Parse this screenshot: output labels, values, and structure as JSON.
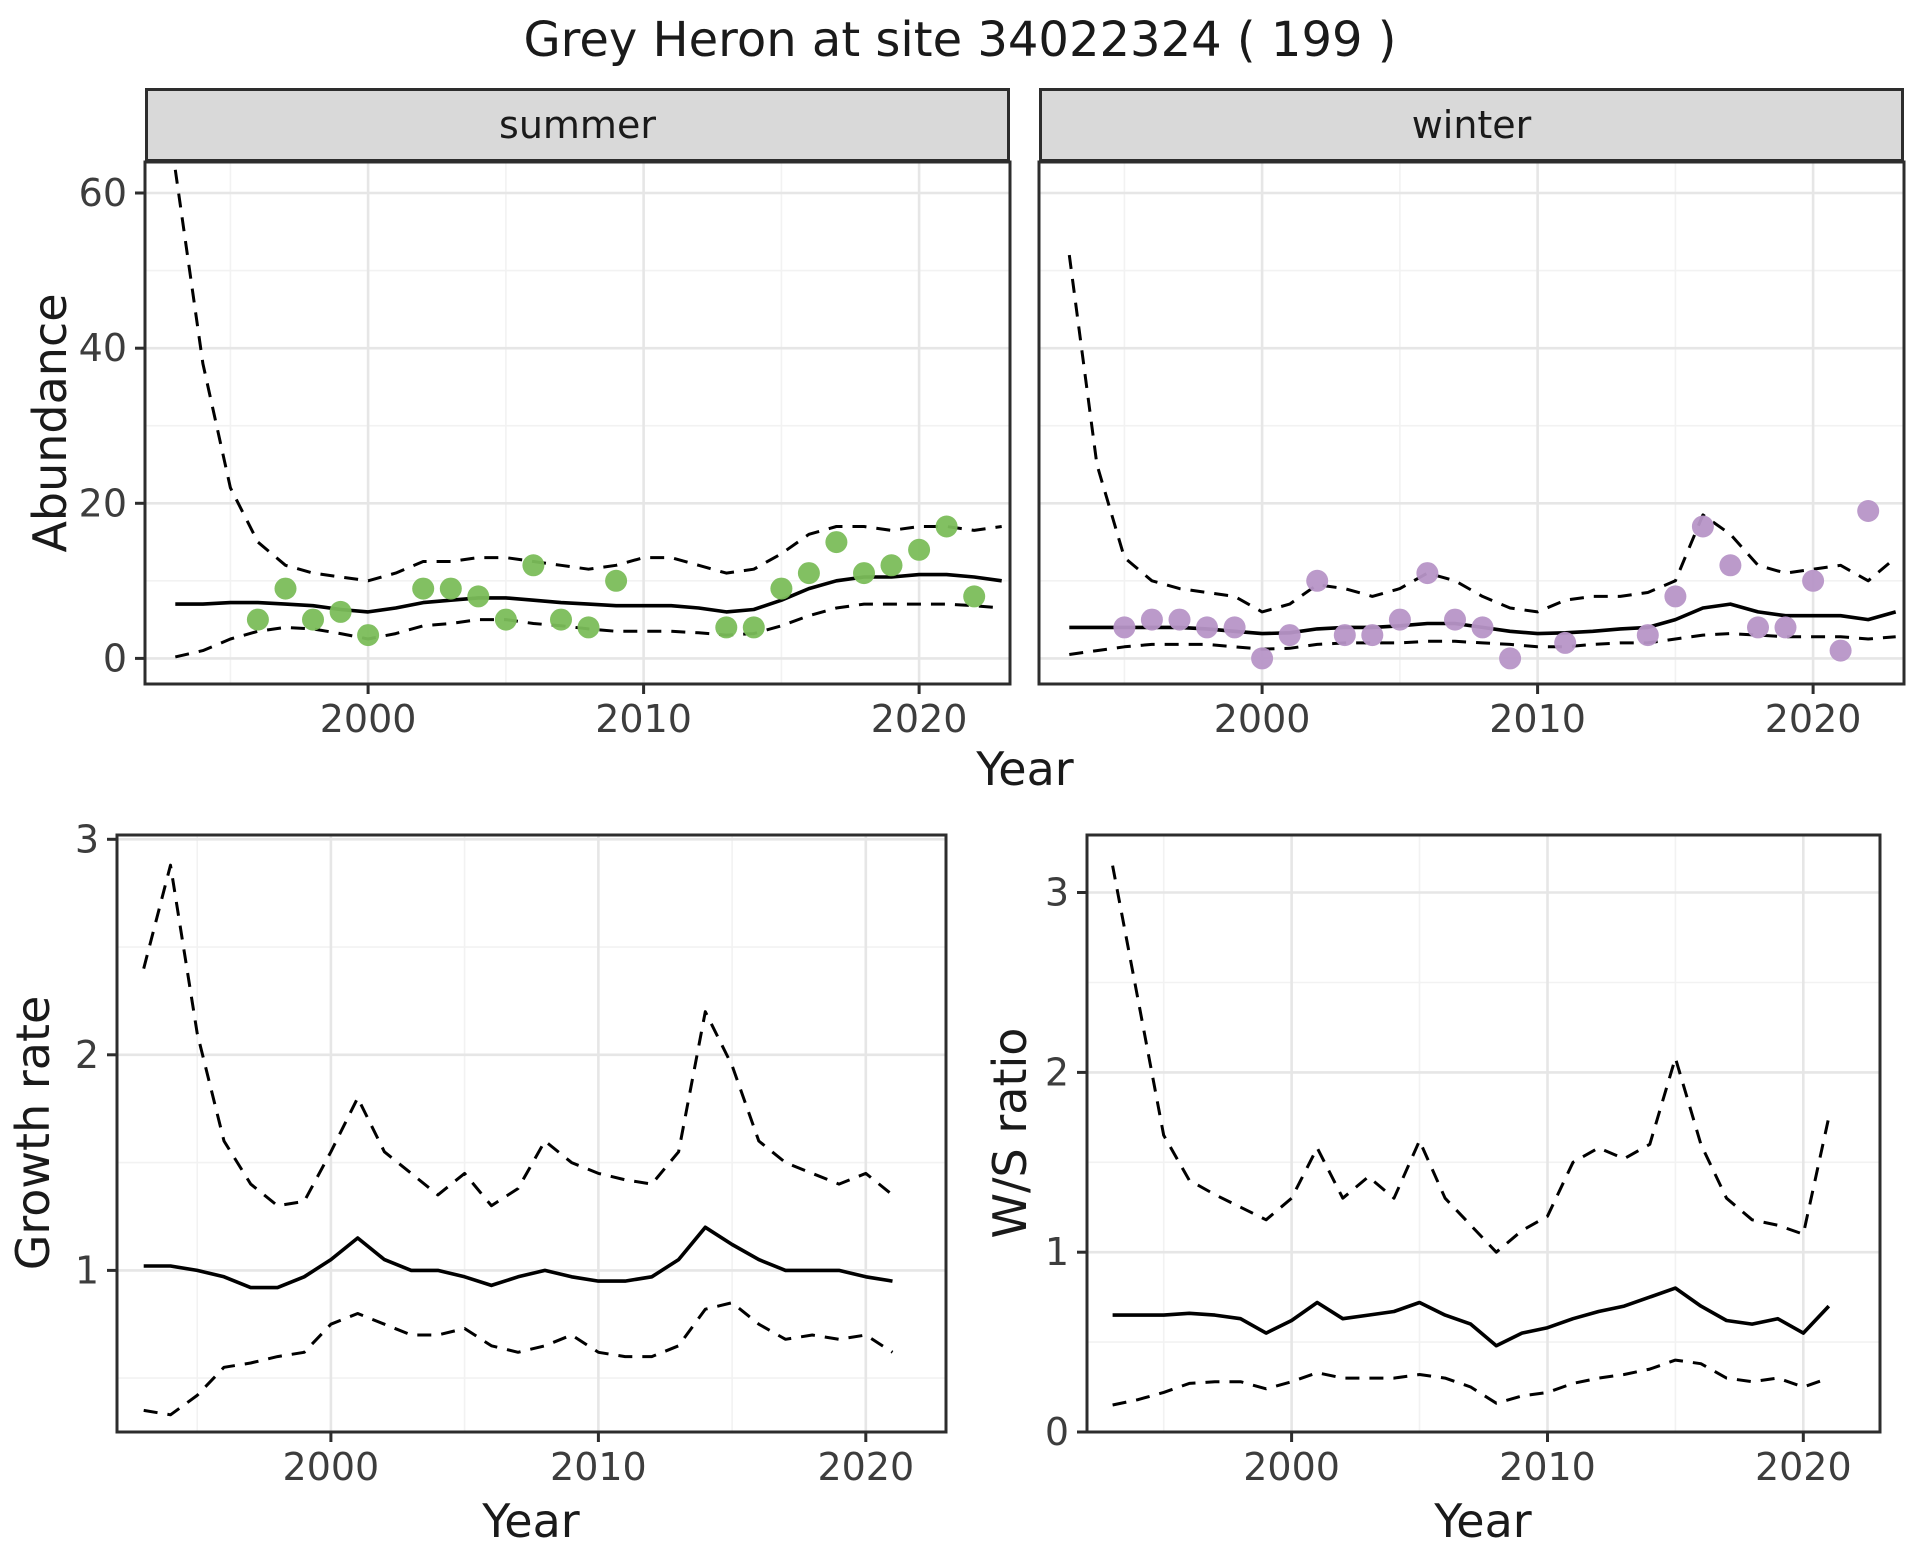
{
  "title": "Grey Heron at site 34022324 ( 199 )",
  "colors": {
    "summer_points": "#7bbd5a",
    "winter_points": "#b795c7",
    "line": "#000000",
    "grid_major": "#e6e6e6",
    "grid_minor": "#f2f2f2",
    "panel_border": "#2d2d2d",
    "strip_bg": "#d9d9d9",
    "tick_text": "#3d3d3d"
  },
  "chart_data": [
    {
      "id": "abundance_summer",
      "type": "line",
      "facet": "summer",
      "xlabel": "Year",
      "ylabel": "Abundance",
      "xlim": [
        1991.9,
        2023.3
      ],
      "ylim": [
        -3.3,
        64
      ],
      "xticks": [
        2000,
        2010,
        2020
      ],
      "xticks_minor": [
        1995,
        2005,
        2015
      ],
      "yticks": [
        0,
        20,
        40,
        60
      ],
      "yticks_minor": [
        10,
        30,
        50
      ],
      "x": [
        1993,
        1994,
        1995,
        1996,
        1997,
        1998,
        1999,
        2000,
        2001,
        2002,
        2003,
        2004,
        2005,
        2006,
        2007,
        2008,
        2009,
        2010,
        2011,
        2012,
        2013,
        2014,
        2015,
        2016,
        2017,
        2018,
        2019,
        2020,
        2021,
        2022,
        2023
      ],
      "series": [
        {
          "name": "upper-ci",
          "style": "dashed",
          "values": [
            63,
            38,
            22,
            15,
            12,
            11,
            10.5,
            10,
            11,
            12.5,
            12.5,
            13,
            13,
            12.5,
            12,
            11.5,
            12,
            13,
            13,
            12,
            11,
            11.5,
            13.5,
            16,
            17,
            17,
            16.5,
            17,
            17,
            16.5,
            17
          ]
        },
        {
          "name": "fit",
          "style": "solid",
          "values": [
            7,
            7,
            7.2,
            7.2,
            7,
            6.8,
            6.3,
            6,
            6.5,
            7.2,
            7.5,
            7.8,
            7.8,
            7.5,
            7.2,
            7,
            6.8,
            6.8,
            6.8,
            6.5,
            6,
            6.3,
            7.5,
            9,
            10,
            10.5,
            10.5,
            10.8,
            10.8,
            10.5,
            10
          ]
        },
        {
          "name": "lower-ci",
          "style": "dashed",
          "values": [
            0.2,
            1,
            2.5,
            3.5,
            4,
            3.8,
            3.2,
            2.5,
            3.2,
            4.2,
            4.5,
            5,
            5,
            4.5,
            4.2,
            3.8,
            3.5,
            3.5,
            3.5,
            3.3,
            3,
            3.2,
            4.2,
            5.5,
            6.5,
            7,
            7,
            7,
            7,
            6.8,
            6.5
          ]
        }
      ],
      "points": {
        "name": "observed-summer",
        "color": "#7bbd5a",
        "x": [
          1996,
          1997,
          1998,
          1999,
          2000,
          2002,
          2003,
          2004,
          2005,
          2006,
          2007,
          2008,
          2009,
          2013,
          2014,
          2015,
          2016,
          2017,
          2018,
          2019,
          2020,
          2021,
          2022
        ],
        "y": [
          5,
          9,
          5,
          6,
          3,
          9,
          9,
          8,
          5,
          12,
          5,
          4,
          10,
          4,
          4,
          9,
          11,
          15,
          11,
          12,
          14,
          17,
          8
        ]
      }
    },
    {
      "id": "abundance_winter",
      "type": "line",
      "facet": "winter",
      "xlabel": "Year",
      "ylabel": "Abundance",
      "xlim": [
        1991.9,
        2023.3
      ],
      "ylim": [
        -3.3,
        64
      ],
      "xticks": [
        2000,
        2010,
        2020
      ],
      "xticks_minor": [
        1995,
        2005,
        2015
      ],
      "yticks": [
        0,
        20,
        40,
        60
      ],
      "yticks_minor": [
        10,
        30,
        50
      ],
      "x": [
        1993,
        1994,
        1995,
        1996,
        1997,
        1998,
        1999,
        2000,
        2001,
        2002,
        2003,
        2004,
        2005,
        2006,
        2007,
        2008,
        2009,
        2010,
        2011,
        2012,
        2013,
        2014,
        2015,
        2016,
        2017,
        2018,
        2019,
        2020,
        2021,
        2022,
        2023
      ],
      "series": [
        {
          "name": "upper-ci",
          "style": "dashed",
          "values": [
            52,
            25,
            13,
            10,
            9,
            8.5,
            8,
            6,
            7,
            9.5,
            9,
            8,
            9,
            11,
            10,
            8,
            6.5,
            6,
            7.5,
            8,
            8,
            8.5,
            10,
            18.5,
            16,
            12,
            11,
            11.5,
            12,
            10,
            13
          ]
        },
        {
          "name": "fit",
          "style": "solid",
          "values": [
            4,
            4,
            4,
            4,
            4,
            3.8,
            3.5,
            3.2,
            3.3,
            3.8,
            4,
            4,
            4.2,
            4.5,
            4.5,
            4,
            3.5,
            3.2,
            3.3,
            3.5,
            3.8,
            4,
            5,
            6.5,
            7,
            6,
            5.5,
            5.5,
            5.5,
            5,
            6
          ]
        },
        {
          "name": "lower-ci",
          "style": "dashed",
          "values": [
            0.5,
            1,
            1.5,
            1.8,
            1.8,
            1.8,
            1.5,
            1.2,
            1.3,
            1.8,
            2,
            2,
            2,
            2.2,
            2.2,
            2,
            1.8,
            1.5,
            1.5,
            1.8,
            2,
            2,
            2.5,
            3,
            3.2,
            3,
            2.8,
            2.8,
            2.8,
            2.5,
            2.8
          ]
        }
      ],
      "points": {
        "name": "observed-winter",
        "color": "#b795c7",
        "x": [
          1995,
          1996,
          1997,
          1998,
          1999,
          2000,
          2001,
          2002,
          2003,
          2004,
          2005,
          2006,
          2007,
          2008,
          2009,
          2011,
          2014,
          2015,
          2016,
          2017,
          2018,
          2019,
          2020,
          2021,
          2022
        ],
        "y": [
          4,
          5,
          5,
          4,
          4,
          0,
          3,
          10,
          3,
          3,
          5,
          11,
          5,
          4,
          0,
          2,
          3,
          8,
          17,
          12,
          4,
          4,
          10,
          1,
          19
        ]
      }
    },
    {
      "id": "growth_rate",
      "type": "line",
      "facet": "",
      "xlabel": "Year",
      "ylabel": "Growth rate",
      "xlim": [
        1992,
        2023
      ],
      "ylim": [
        0.25,
        3.02
      ],
      "xticks": [
        2000,
        2010,
        2020
      ],
      "xticks_minor": [
        1995,
        2005,
        2015
      ],
      "yticks": [
        1,
        2,
        3
      ],
      "yticks_minor": [
        0.5,
        1.5,
        2.5
      ],
      "x": [
        1993,
        1994,
        1995,
        1996,
        1997,
        1998,
        1999,
        2000,
        2001,
        2002,
        2003,
        2004,
        2005,
        2006,
        2007,
        2008,
        2009,
        2010,
        2011,
        2012,
        2013,
        2014,
        2015,
        2016,
        2017,
        2018,
        2019,
        2020,
        2021
      ],
      "series": [
        {
          "name": "upper-ci",
          "style": "dashed",
          "values": [
            2.4,
            2.88,
            2.1,
            1.6,
            1.4,
            1.3,
            1.32,
            1.55,
            1.8,
            1.55,
            1.45,
            1.35,
            1.45,
            1.3,
            1.38,
            1.6,
            1.5,
            1.45,
            1.42,
            1.4,
            1.55,
            2.2,
            1.95,
            1.6,
            1.5,
            1.45,
            1.4,
            1.45,
            1.35
          ]
        },
        {
          "name": "fit",
          "style": "solid",
          "values": [
            1.02,
            1.02,
            1,
            0.97,
            0.92,
            0.92,
            0.97,
            1.05,
            1.15,
            1.05,
            1,
            1,
            0.97,
            0.93,
            0.97,
            1,
            0.97,
            0.95,
            0.95,
            0.97,
            1.05,
            1.2,
            1.12,
            1.05,
            1,
            1,
            1,
            0.97,
            0.95
          ]
        },
        {
          "name": "lower-ci",
          "style": "dashed",
          "values": [
            0.35,
            0.33,
            0.42,
            0.55,
            0.57,
            0.6,
            0.62,
            0.75,
            0.8,
            0.75,
            0.7,
            0.7,
            0.73,
            0.65,
            0.62,
            0.65,
            0.7,
            0.62,
            0.6,
            0.6,
            0.65,
            0.82,
            0.85,
            0.75,
            0.68,
            0.7,
            0.68,
            0.7,
            0.62
          ]
        }
      ]
    },
    {
      "id": "ws_ratio",
      "type": "line",
      "facet": "",
      "xlabel": "Year",
      "ylabel": "W/S ratio",
      "xlim": [
        1992,
        2023
      ],
      "ylim": [
        0,
        3.32
      ],
      "xticks": [
        2000,
        2010,
        2020
      ],
      "xticks_minor": [
        1995,
        2005,
        2015
      ],
      "yticks": [
        0,
        1,
        2,
        3
      ],
      "yticks_minor": [
        0.5,
        1.5,
        2.5
      ],
      "x": [
        1993,
        1994,
        1995,
        1996,
        1997,
        1998,
        1999,
        2000,
        2001,
        2002,
        2003,
        2004,
        2005,
        2006,
        2007,
        2008,
        2009,
        2010,
        2011,
        2012,
        2013,
        2014,
        2015,
        2016,
        2017,
        2018,
        2019,
        2020,
        2021
      ],
      "series": [
        {
          "name": "upper-ci",
          "style": "dashed",
          "values": [
            3.15,
            2.4,
            1.65,
            1.4,
            1.32,
            1.25,
            1.18,
            1.3,
            1.58,
            1.3,
            1.42,
            1.3,
            1.62,
            1.3,
            1.15,
            1,
            1.12,
            1.2,
            1.5,
            1.58,
            1.52,
            1.6,
            2.08,
            1.6,
            1.3,
            1.18,
            1.15,
            1.1,
            1.75
          ]
        },
        {
          "name": "fit",
          "style": "solid",
          "values": [
            0.65,
            0.65,
            0.65,
            0.66,
            0.65,
            0.63,
            0.55,
            0.62,
            0.72,
            0.63,
            0.65,
            0.67,
            0.72,
            0.65,
            0.6,
            0.48,
            0.55,
            0.58,
            0.63,
            0.67,
            0.7,
            0.75,
            0.8,
            0.7,
            0.62,
            0.6,
            0.63,
            0.55,
            0.7
          ]
        },
        {
          "name": "lower-ci",
          "style": "dashed",
          "values": [
            0.15,
            0.18,
            0.22,
            0.27,
            0.28,
            0.28,
            0.24,
            0.28,
            0.33,
            0.3,
            0.3,
            0.3,
            0.32,
            0.3,
            0.25,
            0.16,
            0.2,
            0.22,
            0.27,
            0.3,
            0.32,
            0.35,
            0.4,
            0.38,
            0.3,
            0.28,
            0.3,
            0.25,
            0.3
          ]
        }
      ]
    }
  ]
}
